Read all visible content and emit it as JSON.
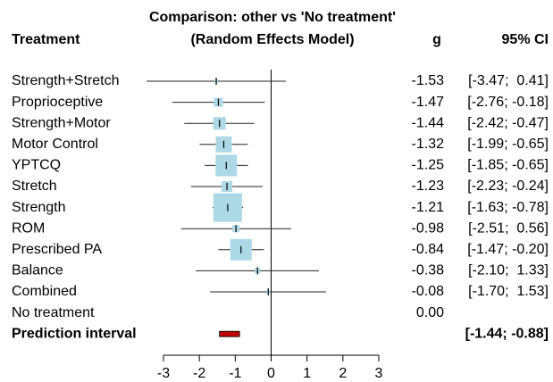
{
  "chart_data": {
    "type": "forest",
    "title": "Comparison: other vs 'No treatment'",
    "subtitle": "(Random Effects Model)",
    "column_headers": {
      "name": "Treatment",
      "estimate": "g",
      "ci": "95% CI"
    },
    "categories": [
      "Strength+Stretch",
      "Proprioceptive",
      "Strength+Motor",
      "Motor Control",
      "YPTCQ",
      "Stretch",
      "Strength",
      "ROM",
      "Prescribed PA",
      "Balance",
      "Combined",
      "No treatment"
    ],
    "values": [
      -1.53,
      -1.47,
      -1.44,
      -1.32,
      -1.25,
      -1.23,
      -1.21,
      -0.98,
      -0.84,
      -0.38,
      -0.08,
      0
    ],
    "value_labels": [
      "-1.53",
      "-1.47",
      "-1.44",
      "-1.32",
      "-1.25",
      "-1.23",
      "-1.21",
      "-0.98",
      "-0.84",
      "-0.38",
      "-0.08",
      "0.00"
    ],
    "lower": [
      -3.47,
      -2.76,
      -2.42,
      -1.99,
      -1.85,
      -2.23,
      -1.63,
      -2.51,
      -1.47,
      -2.1,
      -1.7,
      null
    ],
    "upper": [
      0.41,
      -0.18,
      -0.47,
      -0.65,
      -0.65,
      -0.24,
      -0.78,
      0.56,
      -0.2,
      1.33,
      1.53,
      null
    ],
    "ci_labels": [
      "[-3.47;  0.41]",
      "[-2.76; -0.18]",
      "[-2.42; -0.47]",
      "[-1.99; -0.65]",
      "[-1.85; -0.65]",
      "[-2.23; -0.24]",
      "[-1.63; -0.78]",
      "[-2.51;  0.56]",
      "[-1.47; -0.20]",
      "[-2.10;  1.33]",
      "[-1.70;  1.53]",
      null
    ],
    "weights": [
      2,
      5,
      7,
      9,
      12,
      6,
      16,
      4,
      12,
      3,
      2,
      null
    ],
    "box_color": "#add8e6",
    "prediction": {
      "label": "Prediction interval",
      "lower": -1.44,
      "upper": -0.88,
      "ci_label": "[-1.44; -0.88]",
      "color": "#c00000"
    },
    "xlim": [
      -3,
      3
    ],
    "xticks": [
      -3,
      -2,
      -1,
      0,
      1,
      2,
      3
    ]
  }
}
